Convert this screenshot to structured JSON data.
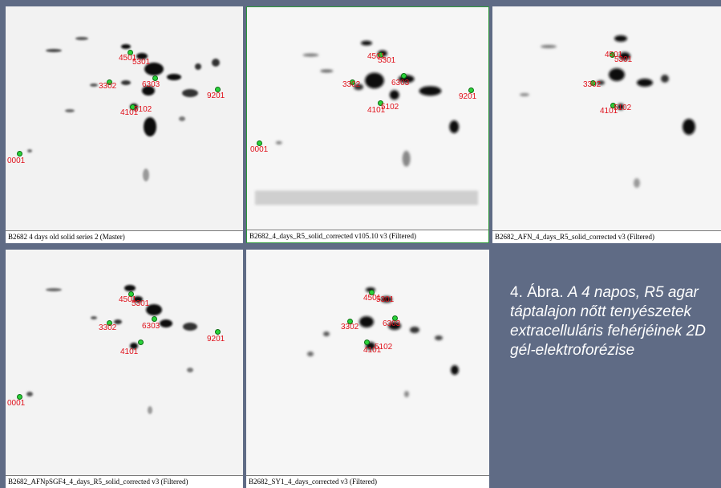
{
  "panels": [
    {
      "caption": "B2682 4 days old solid series 2 (Master)",
      "labels": [
        "4501",
        "5301",
        "3302",
        "6303",
        "9201",
        "4101",
        "5102",
        "0001"
      ]
    },
    {
      "caption": "B2682_4_days_R5_solid_corrected v105.10 v3 (Filtered)",
      "labels": [
        "4501",
        "5301",
        "3302",
        "6303",
        "9201",
        "4101",
        "5102",
        "0001"
      ]
    },
    {
      "caption": "B2682_AFN_4_days_R5_solid_corrected v3 (Filtered)",
      "labels": [
        "4501",
        "5301",
        "3302",
        "4101",
        "5102"
      ]
    },
    {
      "caption": "B2682_AFNpSGF4_4_days_R5_solid_corrected v3 (Filtered)",
      "labels": [
        "4501",
        "5301",
        "3302",
        "6303",
        "9201",
        "4101",
        "0001"
      ]
    },
    {
      "caption": "B2682_SY1_4_days_corrected v3 (Filtered)",
      "labels": [
        "4501",
        "5301",
        "3302",
        "6303",
        "4101",
        "5102"
      ]
    }
  ],
  "figure_caption": {
    "prefix": "4. Ábra.",
    "italic": "A 4 napos, R5 agar táptalajon nőtt tenyészetek extracelluláris fehérjéinek 2D gél-elektroforézise"
  }
}
